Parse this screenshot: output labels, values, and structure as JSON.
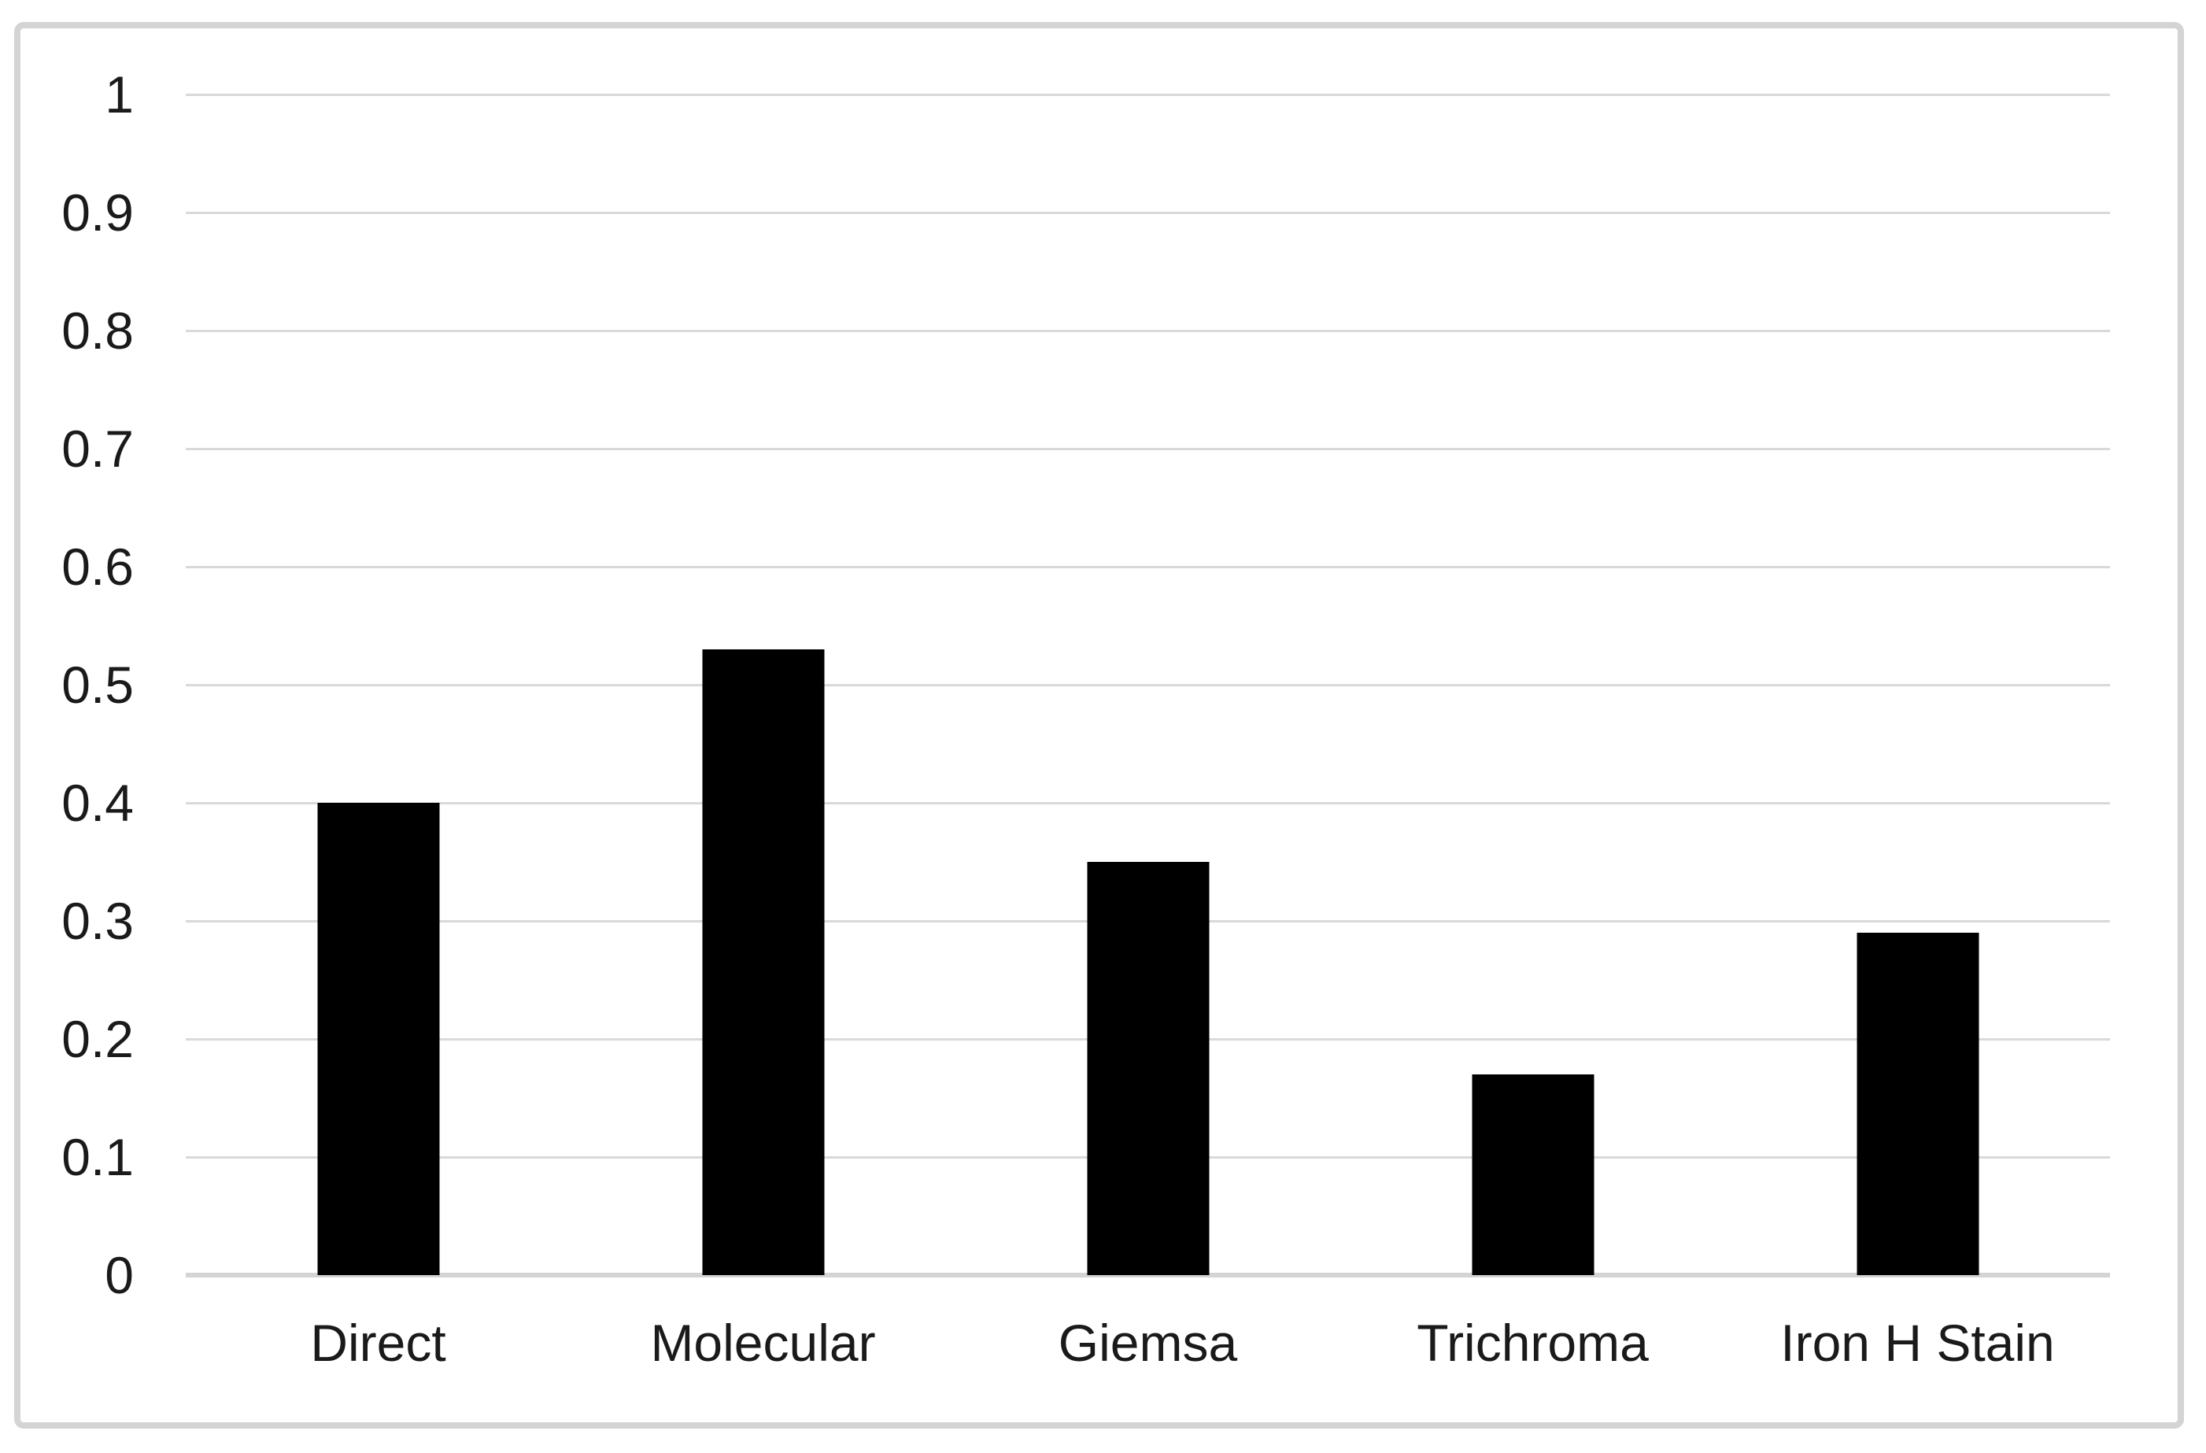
{
  "figure": {
    "kind": "static-bar-chart-figure",
    "background_color": "#ffffff",
    "frame_border_color": "#d4d4d4"
  },
  "chart_data": {
    "type": "bar",
    "title": "",
    "xlabel": "",
    "ylabel": "",
    "categories": [
      "Direct",
      "Molecular",
      "Giemsa",
      "Trichroma",
      "Iron H Stain"
    ],
    "values": [
      0.4,
      0.53,
      0.35,
      0.17,
      0.29
    ],
    "ylim": [
      0,
      1
    ],
    "ytick_step": 0.1,
    "ytick_labels": [
      "1",
      "0.9",
      "0.8",
      "0.7",
      "0.6",
      "0.5",
      "0.4",
      "0.3",
      "0.2",
      "0.1",
      "0"
    ],
    "grid": "horizontal",
    "legend_position": "none",
    "bar_color": "#000000",
    "gridline_color": "#d9d9d9",
    "axis_line_color": "#d4d4d4",
    "label_color": "#1a1a1a"
  }
}
